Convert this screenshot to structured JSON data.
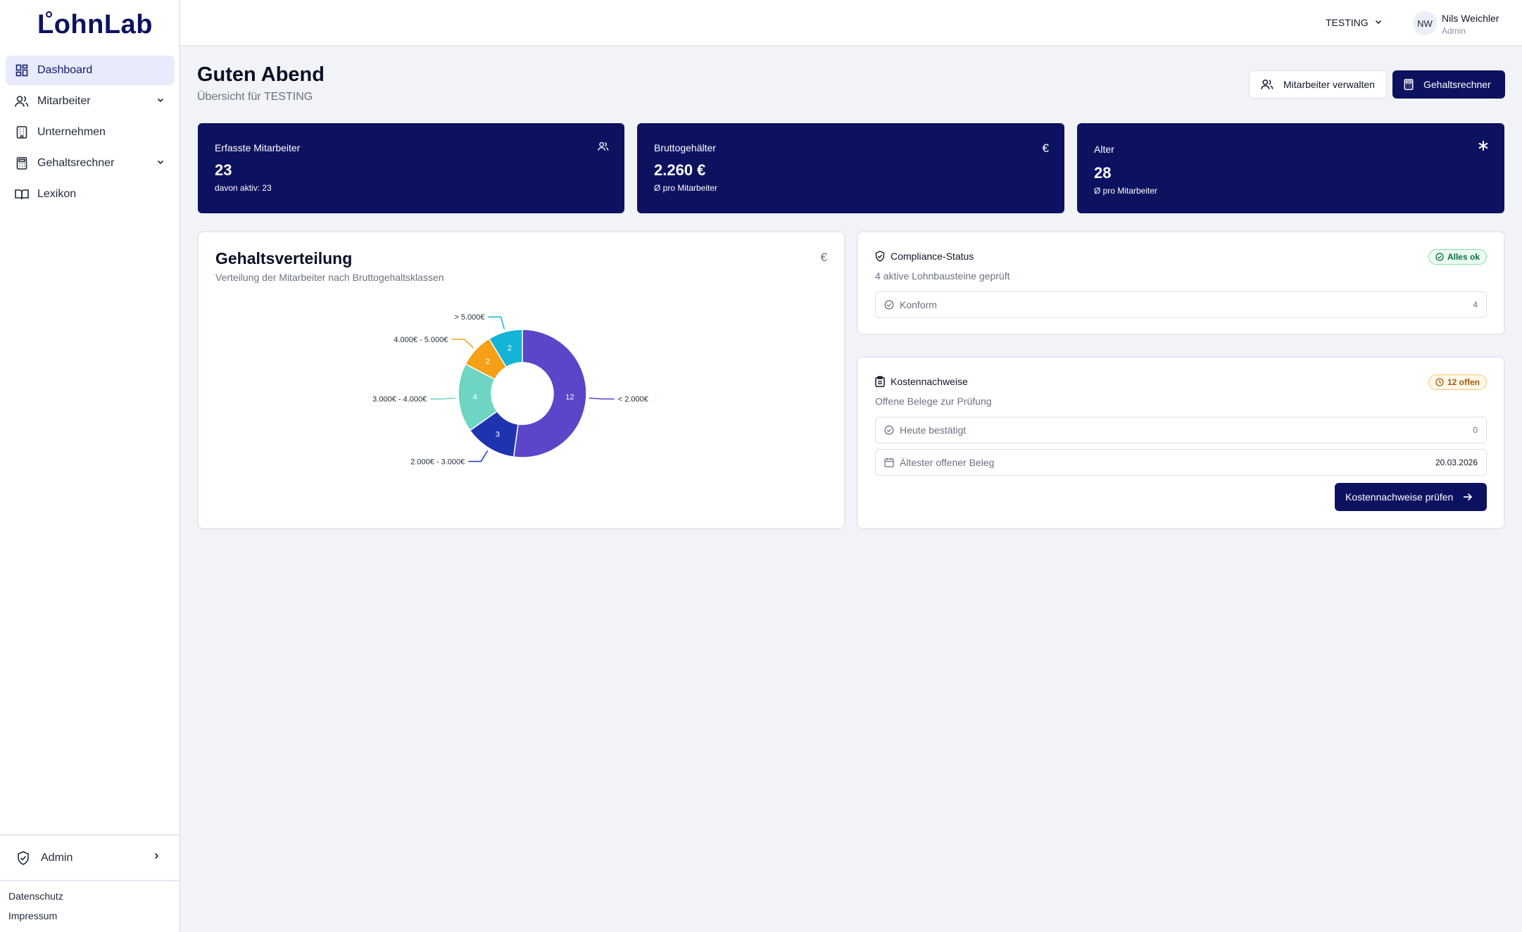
{
  "brand": {
    "logo": "LohnLab"
  },
  "sidebar": {
    "items": [
      {
        "label": "Dashboard",
        "icon": "dashboard-icon"
      },
      {
        "label": "Mitarbeiter",
        "icon": "users-icon"
      },
      {
        "label": "Unternehmen",
        "icon": "building-icon"
      },
      {
        "label": "Gehaltsrechner",
        "icon": "calculator-icon"
      },
      {
        "label": "Lexikon",
        "icon": "book-icon"
      }
    ],
    "admin_label": "Admin",
    "footer": {
      "privacy": "Datenschutz",
      "imprint": "Impressum"
    }
  },
  "topbar": {
    "tenant": "TESTING",
    "avatar_initials": "NW",
    "user_name": "Nils Weichler",
    "user_role": "Admin"
  },
  "header": {
    "greeting": "Guten Abend",
    "subtitle": "Übersicht für TESTING",
    "manage_button": "Mitarbeiter verwalten",
    "calc_button": "Gehaltsrechner"
  },
  "stats": [
    {
      "label": "Erfasste Mitarbeiter",
      "value": "23",
      "sub": "davon aktiv: 23",
      "icon": "users-icon"
    },
    {
      "label": "Bruttogehälter",
      "value": "2.260 €",
      "sub": "Ø pro Mitarbeiter",
      "icon": "euro-icon"
    },
    {
      "label": "Alter",
      "value": "28",
      "sub": "Ø pro Mitarbeiter",
      "icon": "asterisk-icon"
    }
  ],
  "distribution": {
    "title": "Gehaltsverteilung",
    "subtitle": "Verteilung der Mitarbeiter nach Bruttogehaltsklassen",
    "icon_glyph": "€"
  },
  "chart_data": {
    "type": "pie",
    "categories": [
      "< 2.000€",
      "2.000€ - 3.000€",
      "3.000€ - 4.000€",
      "4.000€ - 5.000€",
      "> 5.000€"
    ],
    "values": [
      12,
      3,
      4,
      2,
      2
    ],
    "colors": [
      "#5b45c9",
      "#1e33b0",
      "#6fd5c3",
      "#f5a016",
      "#13b4d6"
    ]
  },
  "compliance": {
    "title": "Compliance-Status",
    "badge": "Alles ok",
    "subtitle": "4 aktive Lohnbausteine geprüft",
    "row_label": "Konform",
    "row_value": "4"
  },
  "costs": {
    "title": "Kostennachweise",
    "badge": "12 offen",
    "subtitle": "Offene Belege zur Prüfung",
    "rows": [
      {
        "label": "Heute bestätigt",
        "value": "0"
      },
      {
        "label": "Ältester offener Beleg",
        "value": "20.03.2026"
      }
    ],
    "button": "Kostennachweise prüfen"
  },
  "colors": {
    "primary": "#0d1260",
    "active_bg": "#e8ebfb",
    "ok": "#0b6b38",
    "warn": "#a15c07"
  }
}
